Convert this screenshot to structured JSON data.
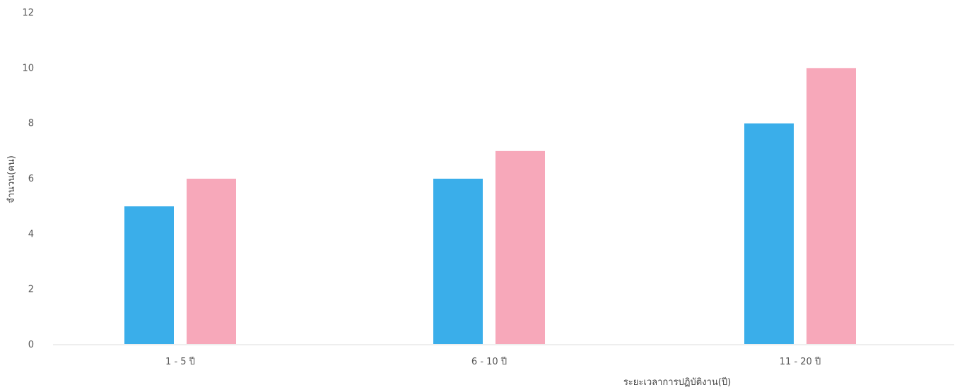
{
  "chart_data": {
    "type": "bar",
    "title": "",
    "xlabel": "ระยะเวลาการปฏิบัติงาน(ปี)",
    "ylabel": "จำนวน(คน)",
    "ylim": [
      0,
      12
    ],
    "yticks": [
      0,
      2,
      4,
      6,
      8,
      10,
      12
    ],
    "categories": [
      "1 - 5 ปี",
      "6 - 10 ปี",
      "11 - 20 ปี"
    ],
    "series": [
      {
        "color": "#3aaeea",
        "values": [
          5,
          6,
          8
        ]
      },
      {
        "color": "#f7a8ba",
        "values": [
          6,
          7,
          10
        ]
      }
    ],
    "grid": false,
    "legend": "none"
  }
}
